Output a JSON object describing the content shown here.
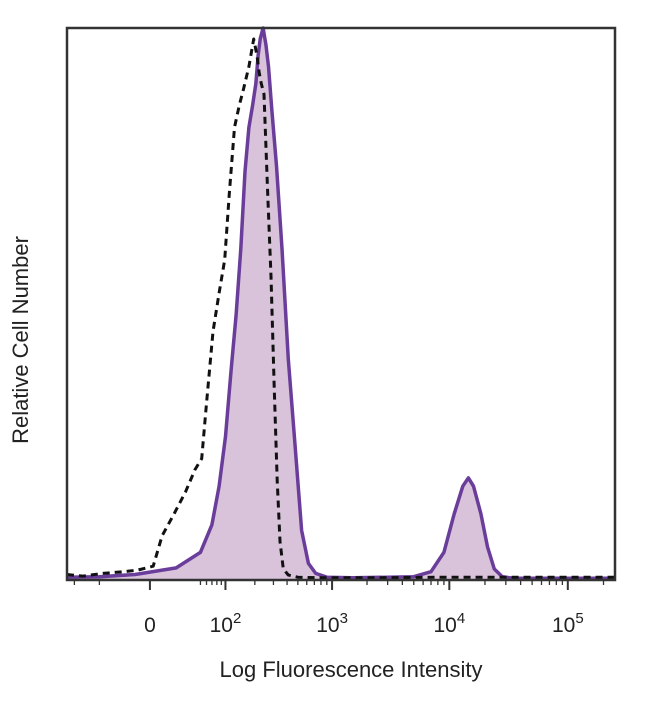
{
  "chart_data": {
    "type": "area",
    "title": "",
    "xlabel": "Log Fluorescence Intensity",
    "ylabel": "Relative Cell Number",
    "x_scale": "biexponential",
    "x_ticks": [
      {
        "value": 0,
        "base": "0",
        "exp": ""
      },
      {
        "value": 100,
        "base": "10",
        "exp": "2"
      },
      {
        "value": 1000,
        "base": "10",
        "exp": "3"
      },
      {
        "value": 10000,
        "base": "10",
        "exp": "4"
      },
      {
        "value": 100000,
        "base": "10",
        "exp": "5"
      }
    ],
    "xlim": [
      -120,
      250000
    ],
    "ylim": [
      0,
      100
    ],
    "grid": false,
    "legend": "none",
    "series": [
      {
        "style": "filled",
        "fill_color": "#d9c3db",
        "line_color": "#6a3d9a",
        "points": [
          [
            -120,
            0.5
          ],
          [
            -50,
            0.6
          ],
          [
            -10,
            1.0
          ],
          [
            20,
            2.2
          ],
          [
            50,
            5.0
          ],
          [
            70,
            10.0
          ],
          [
            85,
            17.0
          ],
          [
            100,
            26.0
          ],
          [
            115,
            38.0
          ],
          [
            130,
            48.0
          ],
          [
            145,
            60.0
          ],
          [
            160,
            74.0
          ],
          [
            175,
            82.0
          ],
          [
            190,
            86.0
          ],
          [
            205,
            90.0
          ],
          [
            215,
            95.0
          ],
          [
            225,
            98.0
          ],
          [
            240,
            100.0
          ],
          [
            255,
            97.0
          ],
          [
            270,
            93.0
          ],
          [
            290,
            85.0
          ],
          [
            320,
            75.0
          ],
          [
            360,
            60.0
          ],
          [
            410,
            40.0
          ],
          [
            470,
            25.0
          ],
          [
            540,
            9.0
          ],
          [
            620,
            3.0
          ],
          [
            720,
            1.2
          ],
          [
            900,
            0.5
          ],
          [
            1500,
            0.4
          ],
          [
            3000,
            0.5
          ],
          [
            5000,
            0.6
          ],
          [
            7000,
            1.5
          ],
          [
            9000,
            5.0
          ],
          [
            11000,
            12.0
          ],
          [
            13000,
            17.0
          ],
          [
            14500,
            18.5
          ],
          [
            16000,
            17.0
          ],
          [
            18500,
            12.0
          ],
          [
            21000,
            6.0
          ],
          [
            24000,
            2.0
          ],
          [
            28000,
            0.6
          ],
          [
            35000,
            0.3
          ],
          [
            60000,
            0.3
          ],
          [
            250000,
            0.3
          ]
        ]
      },
      {
        "style": "dashed",
        "line_color": "#111111",
        "points": [
          [
            -120,
            1.0
          ],
          [
            -80,
            0.7
          ],
          [
            -45,
            1.2
          ],
          [
            -20,
            1.5
          ],
          [
            -8,
            1.8
          ],
          [
            2,
            2.5
          ],
          [
            8,
            8.0
          ],
          [
            18,
            12.0
          ],
          [
            30,
            16.0
          ],
          [
            42,
            20.0
          ],
          [
            52,
            22.0
          ],
          [
            60,
            32.0
          ],
          [
            72,
            45.0
          ],
          [
            85,
            52.0
          ],
          [
            98,
            58.0
          ],
          [
            110,
            70.0
          ],
          [
            125,
            82.0
          ],
          [
            140,
            86.0
          ],
          [
            155,
            89.0
          ],
          [
            175,
            93.0
          ],
          [
            195,
            98.0
          ],
          [
            210,
            95.0
          ],
          [
            220,
            92.0
          ],
          [
            230,
            90.0
          ],
          [
            245,
            88.0
          ],
          [
            265,
            70.0
          ],
          [
            285,
            55.0
          ],
          [
            305,
            35.0
          ],
          [
            325,
            18.0
          ],
          [
            345,
            7.0
          ],
          [
            370,
            2.0
          ],
          [
            410,
            0.9
          ],
          [
            500,
            0.5
          ],
          [
            800,
            0.4
          ],
          [
            2000,
            0.4
          ],
          [
            10000,
            0.5
          ],
          [
            250000,
            0.5
          ]
        ]
      }
    ]
  }
}
